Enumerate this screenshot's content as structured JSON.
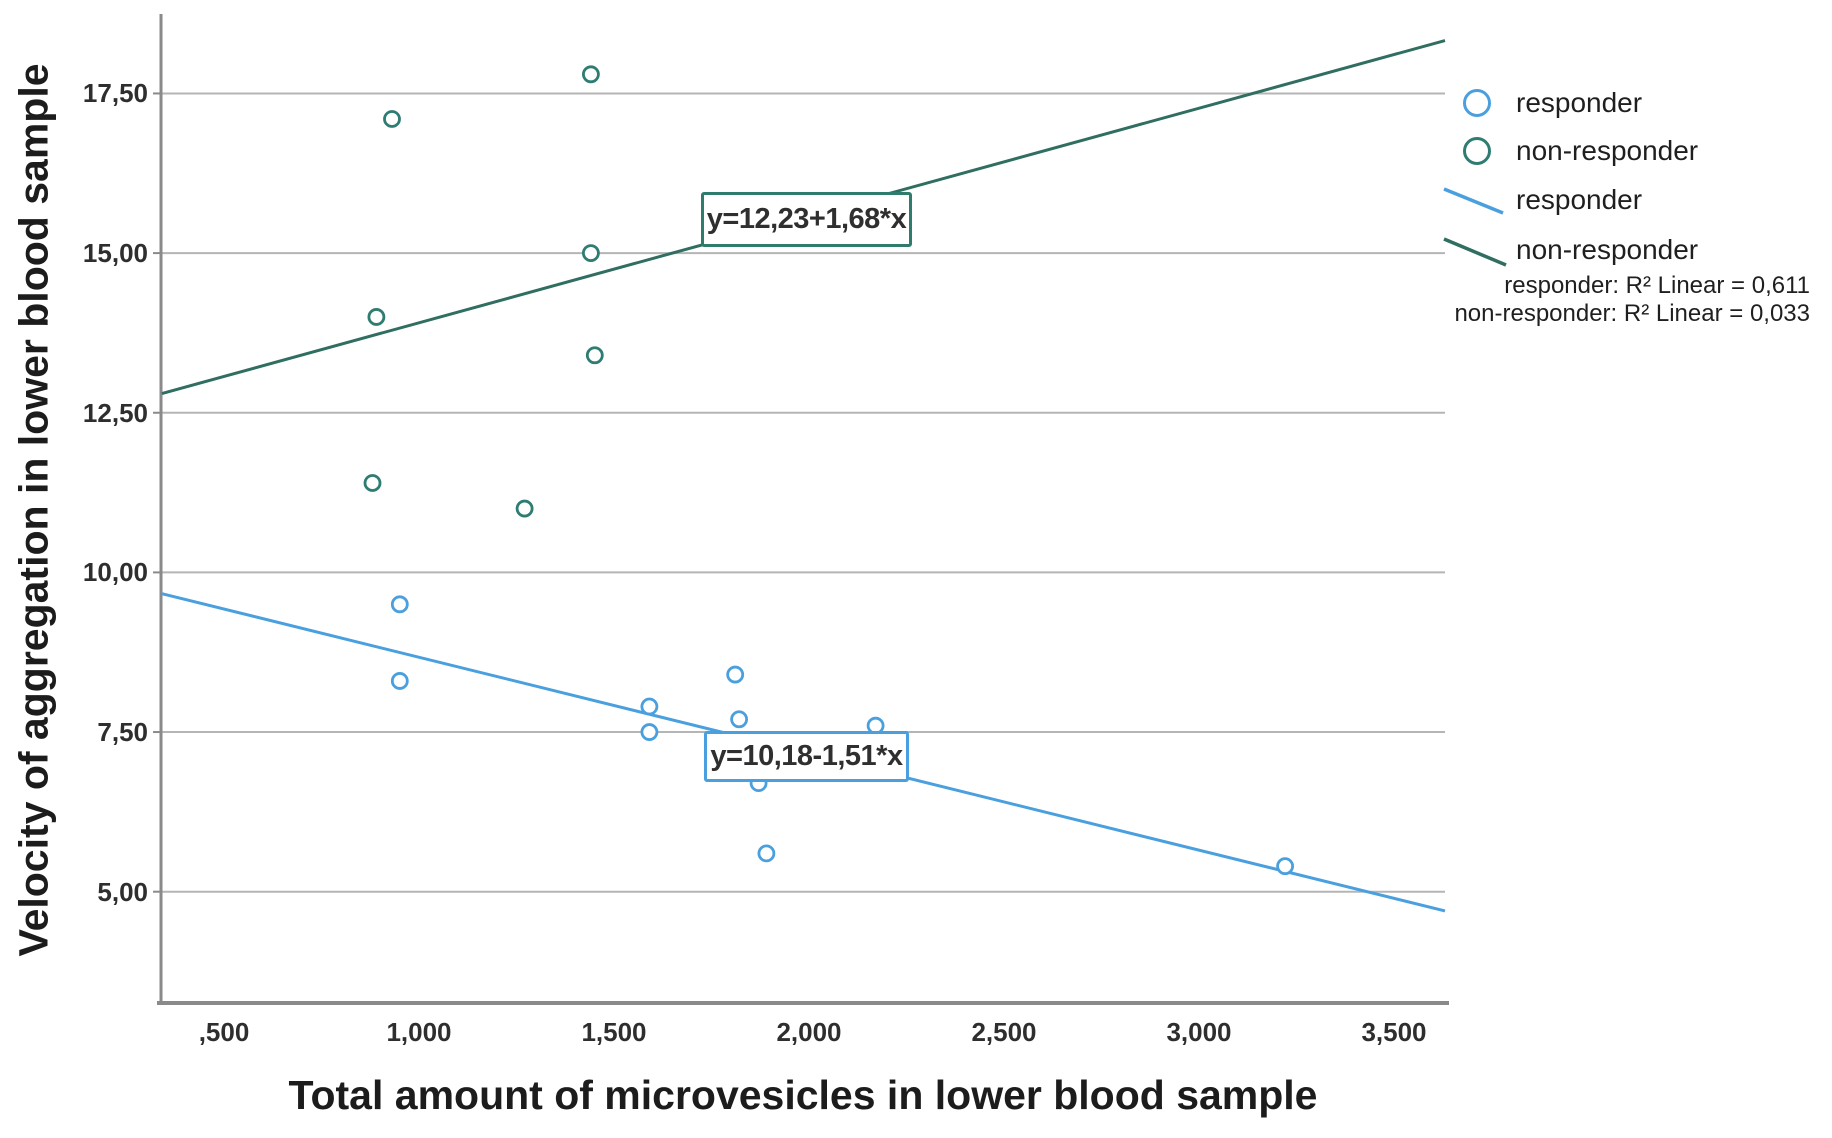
{
  "chart_data": {
    "type": "scatter",
    "xlabel": "Total amount of microvesicles in lower blood sample",
    "ylabel": "Velocity of aggregation in lower blood sample",
    "x_ticks": [
      ",500",
      "1,000",
      "1,500",
      "2,000",
      "2,500",
      "3,000",
      "3,500"
    ],
    "x_tick_values": [
      0.5,
      1.0,
      1.5,
      2.0,
      2.5,
      3.0,
      3.5
    ],
    "y_ticks": [
      "17,50",
      "15,00",
      "12,50",
      "10,00",
      "7,50",
      "5,00"
    ],
    "y_tick_values": [
      17.5,
      15.0,
      12.5,
      10.0,
      7.5,
      5.0
    ],
    "xlim": [
      0.34,
      3.63
    ],
    "ylim": [
      3.26,
      18.74
    ],
    "grid": "horizontal",
    "series": [
      {
        "name": "responder",
        "color": "#4aa0de",
        "marker": "open-circle",
        "points": [
          [
            0.95,
            9.5
          ],
          [
            0.95,
            8.3
          ],
          [
            1.59,
            7.9
          ],
          [
            1.59,
            7.5
          ],
          [
            1.81,
            8.4
          ],
          [
            1.82,
            7.7
          ],
          [
            1.87,
            6.7
          ],
          [
            1.89,
            5.6
          ],
          [
            2.17,
            7.6
          ],
          [
            3.22,
            5.4
          ]
        ],
        "regression": {
          "label": "y=10,18-1,51*x",
          "intercept": 10.18,
          "slope": -1.51
        },
        "r2": "0,611"
      },
      {
        "name": "non-responder",
        "color": "#2e7c72",
        "line_color": "#2f6e60",
        "marker": "open-circle",
        "points": [
          [
            0.93,
            17.1
          ],
          [
            1.44,
            17.8
          ],
          [
            1.44,
            15.0
          ],
          [
            0.89,
            14.0
          ],
          [
            1.45,
            13.4
          ],
          [
            0.88,
            11.4
          ],
          [
            1.27,
            11.0
          ]
        ],
        "regression": {
          "label": "y=12,23+1,68*x",
          "intercept": 12.23,
          "slope": 1.68
        },
        "r2": "0,033"
      }
    ],
    "legend": {
      "items": [
        {
          "label": "responder",
          "marker": "circle",
          "color": "#4aa0de"
        },
        {
          "label": "non-responder",
          "marker": "circle",
          "color": "#2e7c72"
        },
        {
          "label": "responder",
          "marker": "line",
          "color": "#4aa0de"
        },
        {
          "label": "non-responder",
          "marker": "line",
          "color": "#2f6e60"
        }
      ]
    },
    "annotations": [
      "responder: R² Linear = 0,611",
      "non-responder: R² Linear = 0,033"
    ]
  }
}
